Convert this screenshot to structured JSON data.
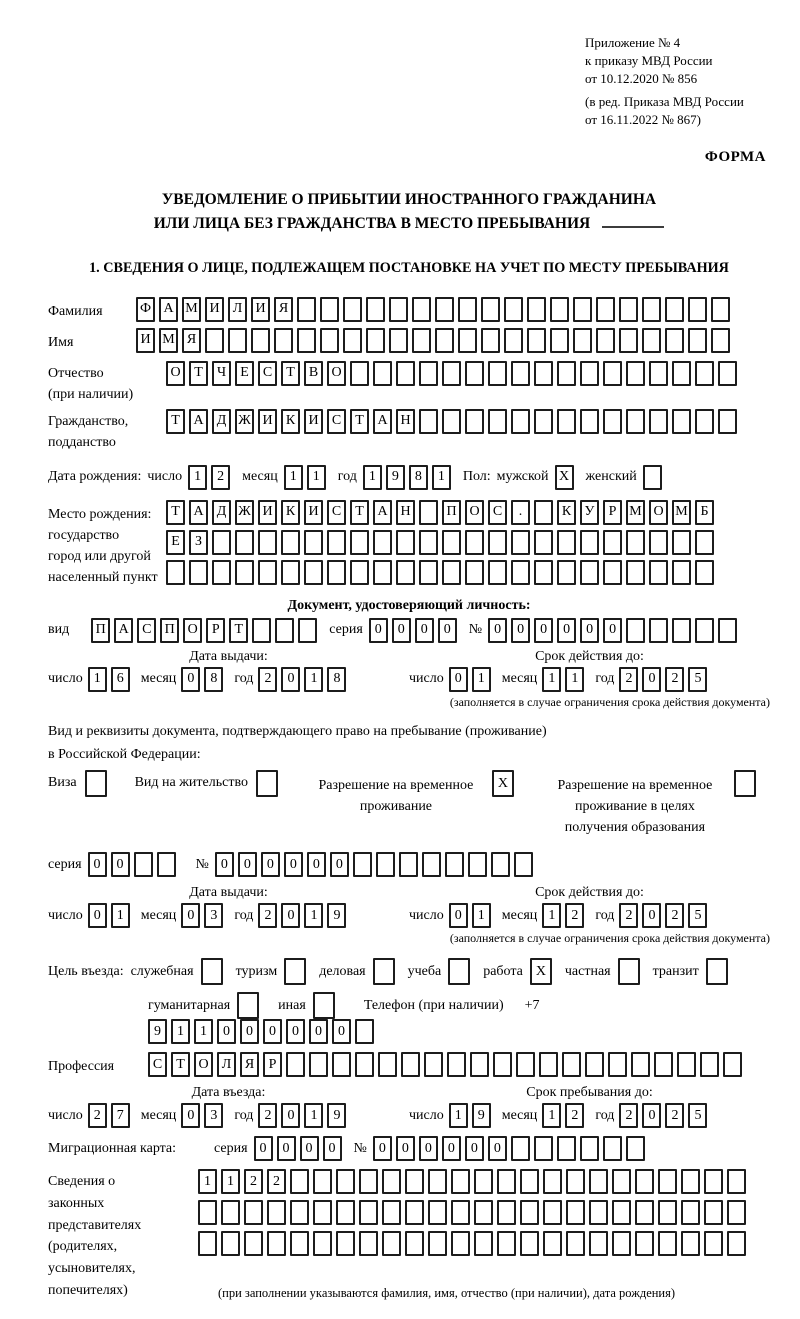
{
  "header": {
    "line1": "Приложение № 4",
    "line2": "к приказу МВД России",
    "line3": "от 10.12.2020 № 856",
    "line4": "(в ред. Приказа МВД России",
    "line5": "от 16.11.2022 № 867)",
    "form_label": "ФОРМА"
  },
  "title": {
    "line1": "УВЕДОМЛЕНИЕ О ПРИБЫТИИ ИНОСТРАННОГО ГРАЖДАНИНА",
    "line2": "ИЛИ ЛИЦА БЕЗ ГРАЖДАНСТВА В МЕСТО ПРЕБЫВАНИЯ"
  },
  "section1": {
    "heading": "1. СВЕДЕНИЯ О ЛИЦЕ, ПОДЛЕЖАЩЕМ ПОСТАНОВКЕ НА УЧЕТ ПО МЕСТУ ПРЕБЫВАНИЯ"
  },
  "date_labels": {
    "day": "число",
    "month": "месяц",
    "year": "год"
  },
  "fields": {
    "surname": {
      "label": "Фамилия",
      "value": "ФАМИЛИЯ"
    },
    "name": {
      "label": "Имя",
      "value": "ИМЯ"
    },
    "patronymic": {
      "label": "Отчество",
      "label2": "(при наличии)",
      "value": "ОТЧЕСТВО"
    },
    "citizenship": {
      "label": "Гражданство,",
      "label2": "подданство",
      "value": "ТАДЖИКИСТАН"
    },
    "birth_date": {
      "label": "Дата рождения:",
      "day": "12",
      "month": "11",
      "year": "1981"
    },
    "gender": {
      "label": "Пол:",
      "male_label": "мужской",
      "male": "X",
      "female_label": "женский",
      "female": ""
    },
    "birth_place": {
      "label": "Место рождения:",
      "label2": "государство",
      "label3": "город или другой",
      "label4": "населенный пункт",
      "row1": "ТАДЖИКИСТАН ПОС. КУРМОМБ",
      "row2": "ЕЗ",
      "row3": ""
    },
    "identity_doc": {
      "heading": "Документ, удостоверяющий личность:",
      "type_label": "вид",
      "type": "ПАСПОРТ",
      "series_label": "серия",
      "series": "0000",
      "number_label": "№",
      "number": "000000",
      "issue": {
        "heading": "Дата выдачи:",
        "day": "16",
        "month": "08",
        "year": "2018"
      },
      "valid": {
        "heading": "Срок действия до:",
        "day": "01",
        "month": "11",
        "year": "2025"
      },
      "note": "(заполняется в случае ограничения срока действия документа)"
    },
    "residence_doc": {
      "intro1": "Вид и реквизиты документа, подтверждающего право на пребывание (проживание)",
      "intro2": "в Российской Федерации:",
      "options": [
        {
          "label": "Виза",
          "checked": ""
        },
        {
          "label": "Вид на жительство",
          "checked": ""
        },
        {
          "label": "Разрешение на временное проживание",
          "checked": "X"
        },
        {
          "label": "Разрешение на временное проживание в целях получения образования",
          "checked": ""
        }
      ],
      "series_label": "серия",
      "series": "00",
      "number_label": "№",
      "number": "000000",
      "issue": {
        "heading": "Дата выдачи:",
        "day": "01",
        "month": "03",
        "year": "2019"
      },
      "valid": {
        "heading": "Срок действия до:",
        "day": "01",
        "month": "12",
        "year": "2025"
      },
      "note": "(заполняется в случае ограничения срока действия документа)"
    },
    "visit_purpose": {
      "label": "Цель въезда:",
      "options": [
        {
          "label": "служебная",
          "checked": ""
        },
        {
          "label": "туризм",
          "checked": ""
        },
        {
          "label": "деловая",
          "checked": ""
        },
        {
          "label": "учеба",
          "checked": ""
        },
        {
          "label": "работа",
          "checked": "X"
        },
        {
          "label": "частная",
          "checked": ""
        },
        {
          "label": "транзит",
          "checked": ""
        },
        {
          "label": "гуманитарная",
          "checked": ""
        },
        {
          "label": "иная",
          "checked": ""
        }
      ]
    },
    "phone": {
      "label": "Телефон (при наличии)",
      "prefix": "+7",
      "value": "911000000"
    },
    "profession": {
      "label": "Профессия",
      "value": "СТОЛЯР"
    },
    "entry_date": {
      "heading": "Дата въезда:",
      "day": "27",
      "month": "03",
      "year": "2019"
    },
    "stay_until": {
      "heading": "Срок пребывания до:",
      "day": "19",
      "month": "12",
      "year": "2025"
    },
    "migration_card": {
      "label": "Миграционная карта:",
      "series_label": "серия",
      "series": "0000",
      "number_label": "№",
      "number": "000000"
    },
    "legal_reps": {
      "label1": "Сведения о",
      "label2": "законных",
      "label3": "представителях",
      "label4": "(родителях,",
      "label5": "усыновителях,",
      "label6": "попечителях)",
      "row1": "1122",
      "row2": "",
      "row3": "",
      "note": "(при заполнении указываются фамилия, имя, отчество (при наличии), дата рождения)"
    }
  }
}
